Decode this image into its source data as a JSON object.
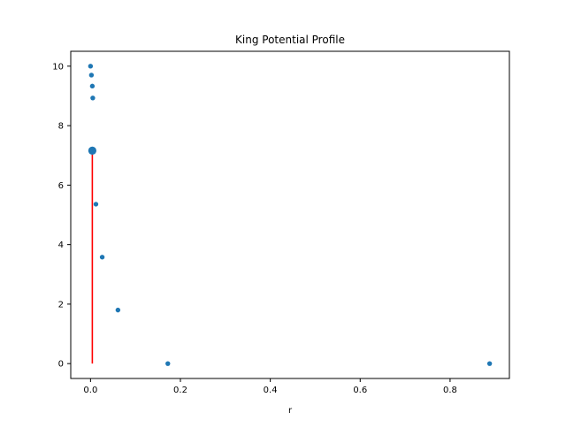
{
  "chart_data": {
    "type": "scatter",
    "title": "King Potential Profile",
    "xlabel": "r",
    "ylabel": "",
    "xlim": [
      -0.044,
      0.932
    ],
    "ylim": [
      -0.5,
      10.5
    ],
    "xticks": [
      0.0,
      0.2,
      0.4,
      0.6,
      0.8
    ],
    "xtick_labels": [
      "0.0",
      "0.2",
      "0.4",
      "0.6",
      "0.8"
    ],
    "yticks": [
      0,
      2,
      4,
      6,
      8,
      10
    ],
    "ytick_labels": [
      "0",
      "2",
      "4",
      "6",
      "8",
      "10"
    ],
    "grid": false,
    "series": [
      {
        "kind": "scatter",
        "color": "#1f77b4",
        "x": [
          0.0,
          0.002,
          0.004,
          0.005,
          0.012,
          0.026,
          0.061,
          0.172,
          0.888
        ],
        "y": [
          10.0,
          9.7,
          9.33,
          8.93,
          5.36,
          3.58,
          1.8,
          0.0,
          0.0
        ]
      },
      {
        "kind": "highlight-point",
        "color": "#1f77b4",
        "x": [
          0.004
        ],
        "y": [
          7.16
        ]
      },
      {
        "kind": "vertical-segment",
        "color": "#ff0000",
        "x": 0.004,
        "y_from": 0.0,
        "y_to": 7.16
      }
    ]
  }
}
